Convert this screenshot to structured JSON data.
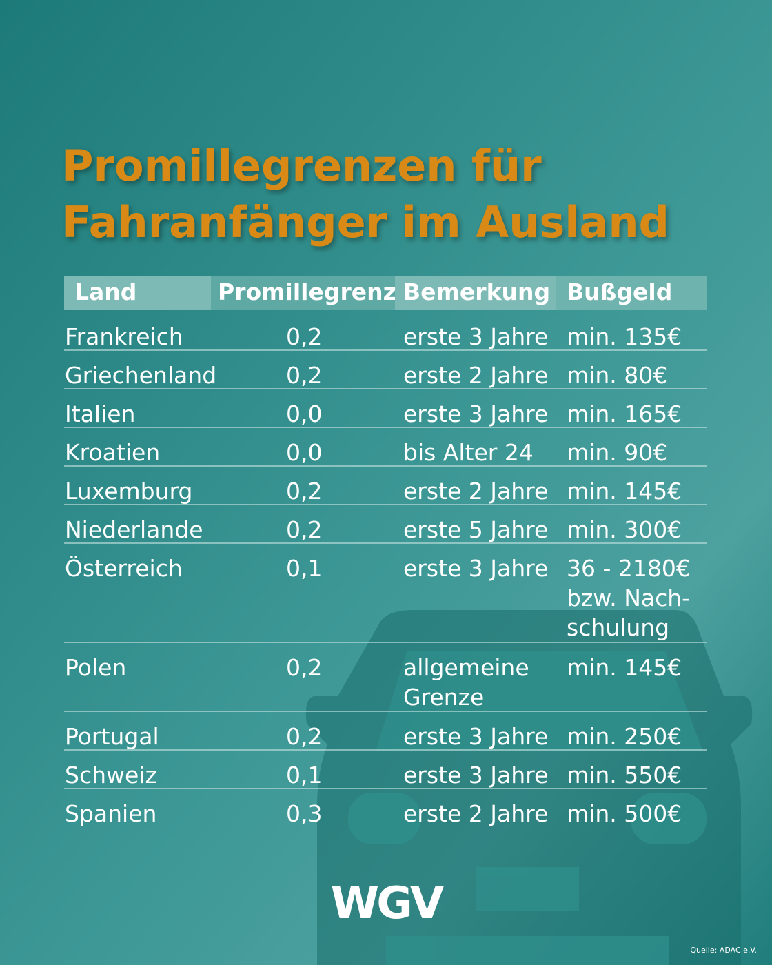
{
  "title": [
    "Promillegrenzen für",
    "Fahranfänger im Ausland"
  ],
  "table": {
    "header": [
      "Land",
      "Promillegrenze",
      "Bemerkung",
      "Bußgeld"
    ],
    "rows": [
      [
        [
          "Frankreich"
        ],
        [
          "0,2"
        ],
        [
          "erste 3 Jahre"
        ],
        [
          "min. 135€"
        ]
      ],
      [
        [
          "Griechenland"
        ],
        [
          "0,2"
        ],
        [
          "erste 2 Jahre"
        ],
        [
          "min. 80€"
        ]
      ],
      [
        [
          "Italien"
        ],
        [
          "0,0"
        ],
        [
          "erste 3 Jahre"
        ],
        [
          "min. 165€"
        ]
      ],
      [
        [
          "Kroatien"
        ],
        [
          "0,0"
        ],
        [
          "bis Alter 24"
        ],
        [
          "min. 90€"
        ]
      ],
      [
        [
          "Luxemburg"
        ],
        [
          "0,2"
        ],
        [
          "erste 2 Jahre"
        ],
        [
          "min. 145€"
        ]
      ],
      [
        [
          "Niederlande"
        ],
        [
          "0,2"
        ],
        [
          "erste 5 Jahre"
        ],
        [
          "min. 300€"
        ]
      ],
      [
        [
          "Österreich"
        ],
        [
          "0,1"
        ],
        [
          "erste 3 Jahre"
        ],
        [
          "36 - 2180€",
          "bzw. Nach-",
          "schulung"
        ]
      ],
      [
        [
          "Polen"
        ],
        [
          "0,2"
        ],
        [
          "allgemeine",
          "Grenze"
        ],
        [
          "min. 145€"
        ]
      ],
      [
        [
          "Portugal"
        ],
        [
          "0,2"
        ],
        [
          "erste 3 Jahre"
        ],
        [
          "min. 250€"
        ]
      ],
      [
        [
          "Schweiz"
        ],
        [
          "0,1"
        ],
        [
          "erste 3 Jahre"
        ],
        [
          "min. 550€"
        ]
      ],
      [
        [
          "Spanien"
        ],
        [
          "0,3"
        ],
        [
          "erste 2 Jahre"
        ],
        [
          "min. 500€"
        ]
      ]
    ]
  },
  "logo": "WGV",
  "source": "Quelle: ADAC e.V."
}
